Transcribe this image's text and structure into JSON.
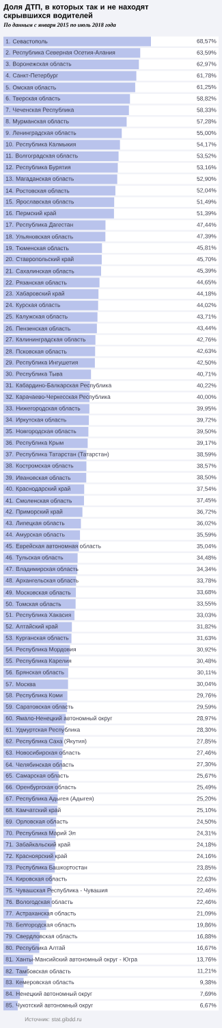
{
  "chart_data": {
    "type": "bar",
    "orientation": "horizontal",
    "title": "Доля ДТП, в которых так и не находят скрывшихся водителей",
    "subtitle": "По данным с января 2015 по июль 2018 года",
    "annotations": [
      "Источник: stat.gibdd.ru"
    ],
    "color": "#b9c3ec",
    "xlim": [
      0,
      100
    ],
    "categories": [
      "1. Севастополь",
      "2. Республика Северная Осетия-Алания",
      "3. Воронежская область",
      "4. Санкт-Петербург",
      "5. Омская область",
      "6. Тверская область",
      "7. Чеченская Республика",
      "8. Мурманская область",
      "9. Ленинградская область",
      "10. Республика Калмыкия",
      "11. Волгоградская область",
      "12. Республика Бурятия",
      "13. Магаданская область",
      "14. Ростовская область",
      "15. Ярославская область",
      "16. Пермский край",
      "17. Республика Дагестан",
      "18. Ульяновская область",
      "19. Тюменская область",
      "20. Ставропольский край",
      "21. Сахалинская область",
      "22. Рязанская область",
      "23. Хабаровский край",
      "24. Курская область",
      "25. Калужская область",
      "26. Пензенская область",
      "27. Калининградская область",
      "28. Псковская область",
      "29. Республика Ингушетия",
      "30. Республика Тыва",
      "31. Кабардино-Балкарская Республика",
      "32. Карачаево-Черкесская Республика",
      "33. Нижегородская область",
      "34. Иркутская область",
      "35. Новгородская область",
      "36. Республика Крым",
      "37. Республика Татарстан (Татарстан)",
      "38. Костромская область",
      "39. Ивановская область",
      "40. Краснодарский край",
      "41. Смоленская область",
      "42. Приморский край",
      "43. Липецкая область",
      "44. Амурская область",
      "45. Еврейская автономная область",
      "46. Тульская область",
      "47. Владимирская область",
      "48. Архангельская область",
      "49. Московская область",
      "50. Томская область",
      "51. Республика Хакасия",
      "52. Алтайский край",
      "53. Курганская область",
      "54. Республика Мордовия",
      "55. Республика Карелия",
      "56. Брянская область",
      "57. Москва",
      "58. Республика Коми",
      "59. Саратовская область",
      "60. Ямало-Ненецкий автономный округ",
      "61. Удмуртская Республика",
      "62. Республика Саха (Якутия)",
      "63. Новосибирская область",
      "64. Челябинская область",
      "65. Самарская область",
      "66. Оренбургская область",
      "67. Республика Адыгея (Адыгея)",
      "68. Камчатский край",
      "69. Орловская область",
      "70. Республика Марий Эл",
      "71. Забайкальский край",
      "72. Красноярский край",
      "73. Республика Башкортостан",
      "74. Кировская область",
      "75. Чувашская Республика - Чувашия",
      "76. Вологодская область",
      "77. Астраханская область",
      "78. Белгородская область",
      "79. Свердловская область",
      "80. Республика Алтай",
      "81. Ханты-Мансийский автономный округ - Югра",
      "82. Тамбовская область",
      "83. Кемеровская область",
      "84. Ненецкий автономный округ",
      "85. Чукотский автономный округ"
    ],
    "values": [
      68.57,
      63.59,
      62.97,
      61.78,
      61.25,
      58.82,
      58.33,
      57.28,
      55.0,
      54.17,
      53.52,
      53.16,
      52.9,
      52.04,
      51.49,
      51.39,
      47.44,
      47.39,
      45.81,
      45.7,
      45.39,
      44.65,
      44.18,
      44.02,
      43.71,
      43.44,
      42.76,
      42.63,
      42.5,
      40.71,
      40.22,
      40.0,
      39.95,
      39.72,
      39.5,
      39.17,
      38.59,
      38.57,
      38.5,
      37.54,
      37.45,
      36.72,
      36.02,
      35.59,
      35.04,
      34.48,
      34.34,
      33.78,
      33.68,
      33.55,
      33.03,
      31.82,
      31.63,
      30.92,
      30.48,
      30.11,
      30.04,
      29.76,
      29.59,
      28.97,
      28.3,
      27.85,
      27.46,
      27.3,
      25.67,
      25.49,
      25.2,
      25.1,
      24.5,
      24.31,
      24.18,
      24.16,
      23.85,
      22.63,
      22.46,
      22.46,
      21.09,
      19.86,
      16.88,
      16.67,
      13.76,
      11.21,
      9.38,
      7.69,
      6.67
    ],
    "value_labels": [
      "68,57%",
      "63,59%",
      "62,97%",
      "61,78%",
      "61,25%",
      "58,82%",
      "58,33%",
      "57,28%",
      "55,00%",
      "54,17%",
      "53,52%",
      "53,16%",
      "52,90%",
      "52,04%",
      "51,49%",
      "51,39%",
      "47,44%",
      "47,39%",
      "45,81%",
      "45,70%",
      "45,39%",
      "44,65%",
      "44,18%",
      "44,02%",
      "43,71%",
      "43,44%",
      "42,76%",
      "42,63%",
      "42,50%",
      "40,71%",
      "40,22%",
      "40,00%",
      "39,95%",
      "39,72%",
      "39,50%",
      "39,17%",
      "38,59%",
      "38,57%",
      "38,50%",
      "37,54%",
      "37,45%",
      "36,72%",
      "36,02%",
      "35,59%",
      "35,04%",
      "34,48%",
      "34,34%",
      "33,78%",
      "33,68%",
      "33,55%",
      "33,03%",
      "31,82%",
      "31,63%",
      "30,92%",
      "30,48%",
      "30,11%",
      "30,04%",
      "29,76%",
      "29,59%",
      "28,97%",
      "28,30%",
      "27,85%",
      "27,46%",
      "27,30%",
      "25,67%",
      "25,49%",
      "25,20%",
      "25,10%",
      "24,50%",
      "24,31%",
      "24,18%",
      "24,16%",
      "23,85%",
      "22,63%",
      "22,46%",
      "22,46%",
      "21,09%",
      "19,86%",
      "16,88%",
      "16,67%",
      "13,76%",
      "11,21%",
      "9,38%",
      "7,69%",
      "6,67%"
    ]
  }
}
